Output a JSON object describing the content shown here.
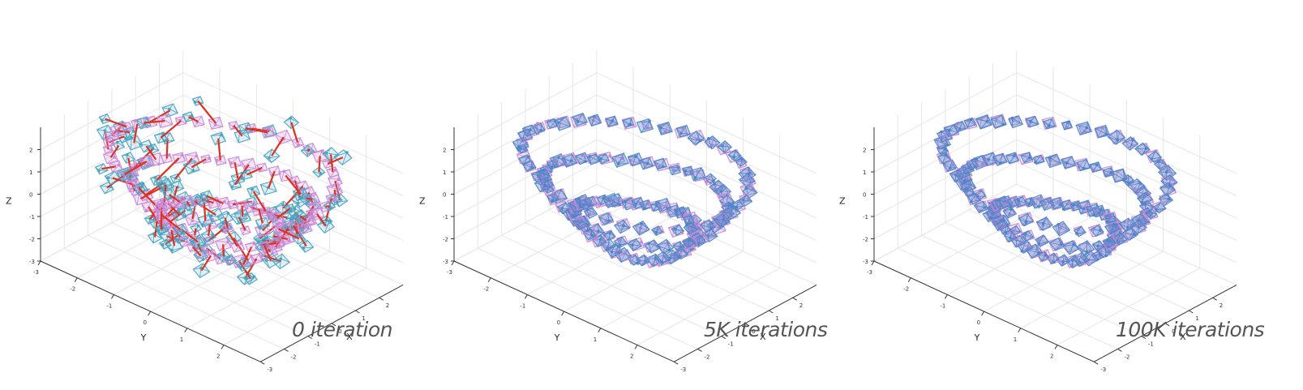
{
  "chart_data": [
    {
      "type": "scatter",
      "caption": "0 iteration",
      "axes": {
        "x": {
          "label": "X",
          "ticks": [
            "-3",
            "-2",
            "-1",
            "0",
            "1",
            "2"
          ]
        },
        "y": {
          "label": "Y",
          "ticks": [
            "-3",
            "-2",
            "-1",
            "0",
            "1",
            "2"
          ]
        },
        "z": {
          "label": "Z",
          "ticks": [
            "-3",
            "-2",
            "-1",
            "0",
            "1",
            "2"
          ]
        }
      },
      "series": [
        {
          "color": "#4aa3c0",
          "frames": 120
        },
        {
          "color": "#c98ad6",
          "frames": 120
        },
        {
          "color": "#e03020",
          "frames": 120
        }
      ],
      "error_lines_visible": true
    },
    {
      "type": "scatter",
      "caption": "5K iterations",
      "axes": {
        "x": {
          "label": "X",
          "ticks": [
            "-3",
            "-2",
            "-1",
            "0",
            "1",
            "2"
          ]
        },
        "y": {
          "label": "Y",
          "ticks": [
            "-3",
            "-2",
            "-1",
            "0",
            "1",
            "2"
          ]
        },
        "z": {
          "label": "Z",
          "ticks": [
            "-3",
            "-2",
            "-1",
            "0",
            "1",
            "2"
          ]
        }
      },
      "series": [
        {
          "color": "#4a86c8",
          "frames": 120
        },
        {
          "color": "#c98ad6",
          "frames": 120
        }
      ],
      "error_lines_visible": false
    },
    {
      "type": "scatter",
      "caption": "100K iterations",
      "axes": {
        "x": {
          "label": "X",
          "ticks": [
            "-3",
            "-2",
            "-1",
            "0",
            "1",
            "2"
          ]
        },
        "y": {
          "label": "Y",
          "ticks": [
            "-3",
            "-2",
            "-1",
            "0",
            "1",
            "2"
          ]
        },
        "z": {
          "label": "Z",
          "ticks": [
            "-3",
            "-2",
            "-1",
            "0",
            "1",
            "2"
          ]
        }
      },
      "series": [
        {
          "color": "#4a86c8",
          "frames": 120
        },
        {
          "color": "#c98ad6",
          "frames": 120
        }
      ],
      "error_lines_visible": false
    }
  ]
}
